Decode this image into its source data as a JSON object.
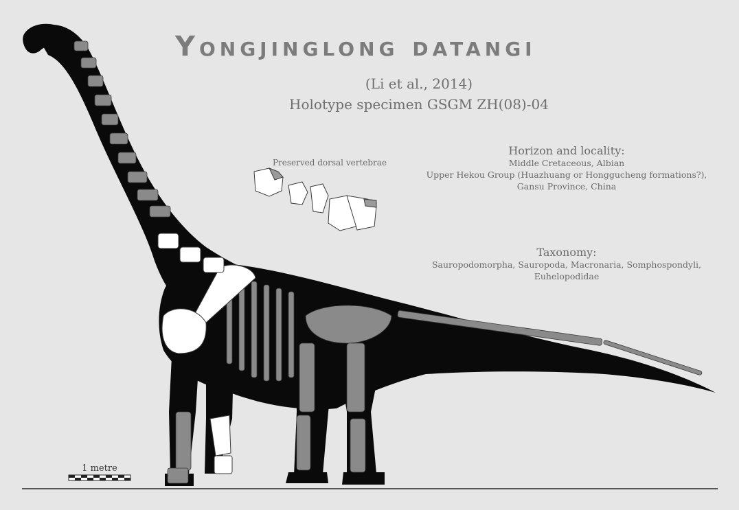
{
  "title": "Yongjinglong datangi",
  "citation": "(Li et al., 2014)",
  "holotype": "Holotype specimen GSGM ZH(08)-04",
  "vertebrae_label": "Preserved dorsal vertebrae",
  "horizon": {
    "heading": "Horizon and locality:",
    "lines": [
      "Middle Cretaceous, Albian",
      "Upper Hekou Group (Huazhuang or Honggucheng formations?),",
      "Gansu Province, China"
    ]
  },
  "taxonomy": {
    "heading": "Taxonomy:",
    "lines": [
      "Sauropodomorpha, Sauropoda, Macronaria, Somphospondyli,",
      "Euhelopodidae"
    ]
  },
  "scale_bar": {
    "label": "1 metre"
  },
  "colors": {
    "background": "#e6e6e6",
    "silhouette": "#0a0a0a",
    "bone": "#8a8a8a",
    "preserved_bone": "#ffffff",
    "title": "#7c7c7c"
  }
}
